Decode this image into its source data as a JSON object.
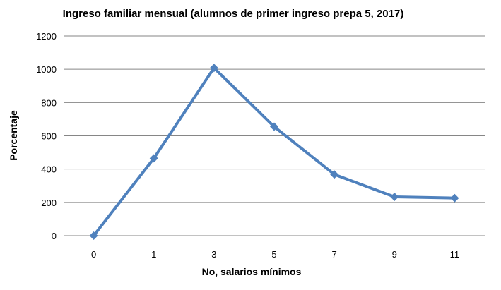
{
  "chart_data": {
    "type": "line",
    "title": "Ingreso familiar mensual (alumnos de primer ingreso prepa 5, 2017)",
    "xlabel": "No, salarios  mínimos",
    "ylabel": "Porcentaje",
    "categories": [
      "0",
      "1",
      "3",
      "5",
      "7",
      "9",
      "11"
    ],
    "series": [
      {
        "values": [
          0,
          465,
          1008,
          655,
          368,
          233,
          226
        ]
      }
    ],
    "ylim": [
      0,
      1200
    ],
    "yticks": [
      0,
      200,
      400,
      600,
      800,
      1000,
      1200
    ],
    "grid": true,
    "legend": "none",
    "colors": {
      "line": "#4f81bd",
      "grid": "#868686"
    }
  }
}
